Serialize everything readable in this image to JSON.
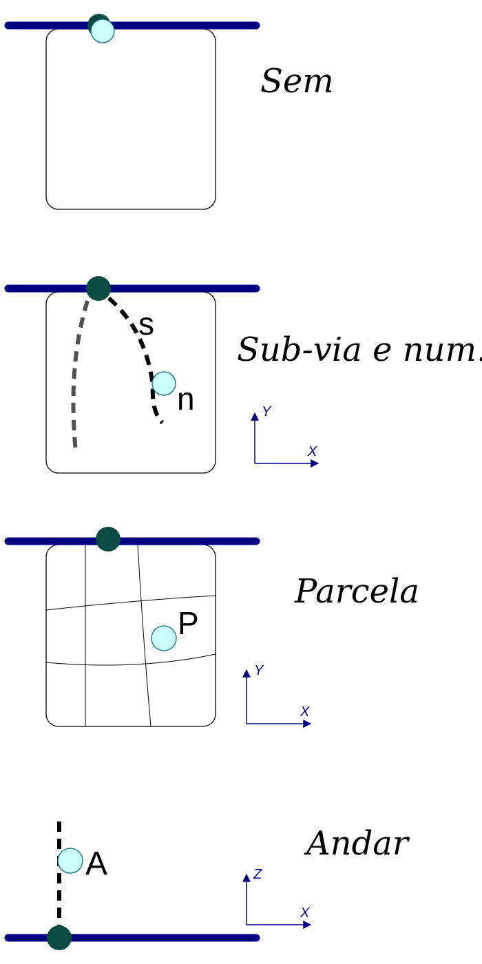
{
  "colors": {
    "road": "#000080",
    "axis": "#000080",
    "access_point": "#0c4a44",
    "address_point": "#ccffff",
    "address_stroke": "#0a6d7d",
    "block_stroke": "#000000",
    "path_dark": "#000000",
    "path_gray": "#505050"
  },
  "panels": [
    {
      "id": "sem",
      "label": "Sem"
    },
    {
      "id": "subvia",
      "label": "Sub-via e num.",
      "path_label": "s",
      "point_label": "n",
      "axes": {
        "vertical": "Y",
        "horizontal": "X"
      }
    },
    {
      "id": "parcela",
      "label": "Parcela",
      "point_label": "P",
      "axes": {
        "vertical": "Y",
        "horizontal": "X"
      }
    },
    {
      "id": "andar",
      "label": "Andar",
      "point_label": "A",
      "axes": {
        "vertical": "Z",
        "horizontal": "X"
      }
    }
  ]
}
